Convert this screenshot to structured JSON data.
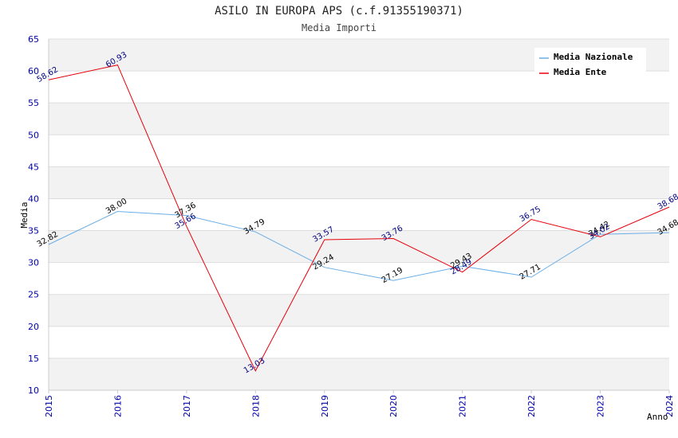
{
  "chart_data": {
    "type": "line",
    "title": "ASILO IN EUROPA APS (c.f.91355190371)",
    "subtitle": "Media Importi",
    "xlabel": "Anno",
    "ylabel": "Media",
    "ylim": [
      10,
      65
    ],
    "yticks": [
      10,
      15,
      20,
      25,
      30,
      35,
      40,
      45,
      50,
      55,
      60,
      65
    ],
    "categories": [
      "2015",
      "2016",
      "2017",
      "2018",
      "2019",
      "2020",
      "2021",
      "2022",
      "2023",
      "2024"
    ],
    "series": [
      {
        "name": "Media Nazionale",
        "color": "#6aaee6",
        "label_color": "#000000",
        "values": [
          32.82,
          38.0,
          37.36,
          34.79,
          29.24,
          27.19,
          29.43,
          27.71,
          34.42,
          34.68
        ],
        "labels": [
          "32.82",
          "38.00",
          "37.36",
          "34.79",
          "29.24",
          "27.19",
          "29.43",
          "27.71",
          "34.42",
          "34.68"
        ]
      },
      {
        "name": "Media Ente",
        "color": "#e8000b",
        "label_color": "#000080",
        "values": [
          58.62,
          60.93,
          35.66,
          13.03,
          33.57,
          33.76,
          28.49,
          36.75,
          34.02,
          38.68
        ],
        "labels": [
          "58.62",
          "60.93",
          "35.66",
          "13.03",
          "33.57",
          "33.76",
          "28.49",
          "36.75",
          "34.02",
          "38.68"
        ]
      }
    ],
    "legend_position": "top-right",
    "grid": true
  }
}
